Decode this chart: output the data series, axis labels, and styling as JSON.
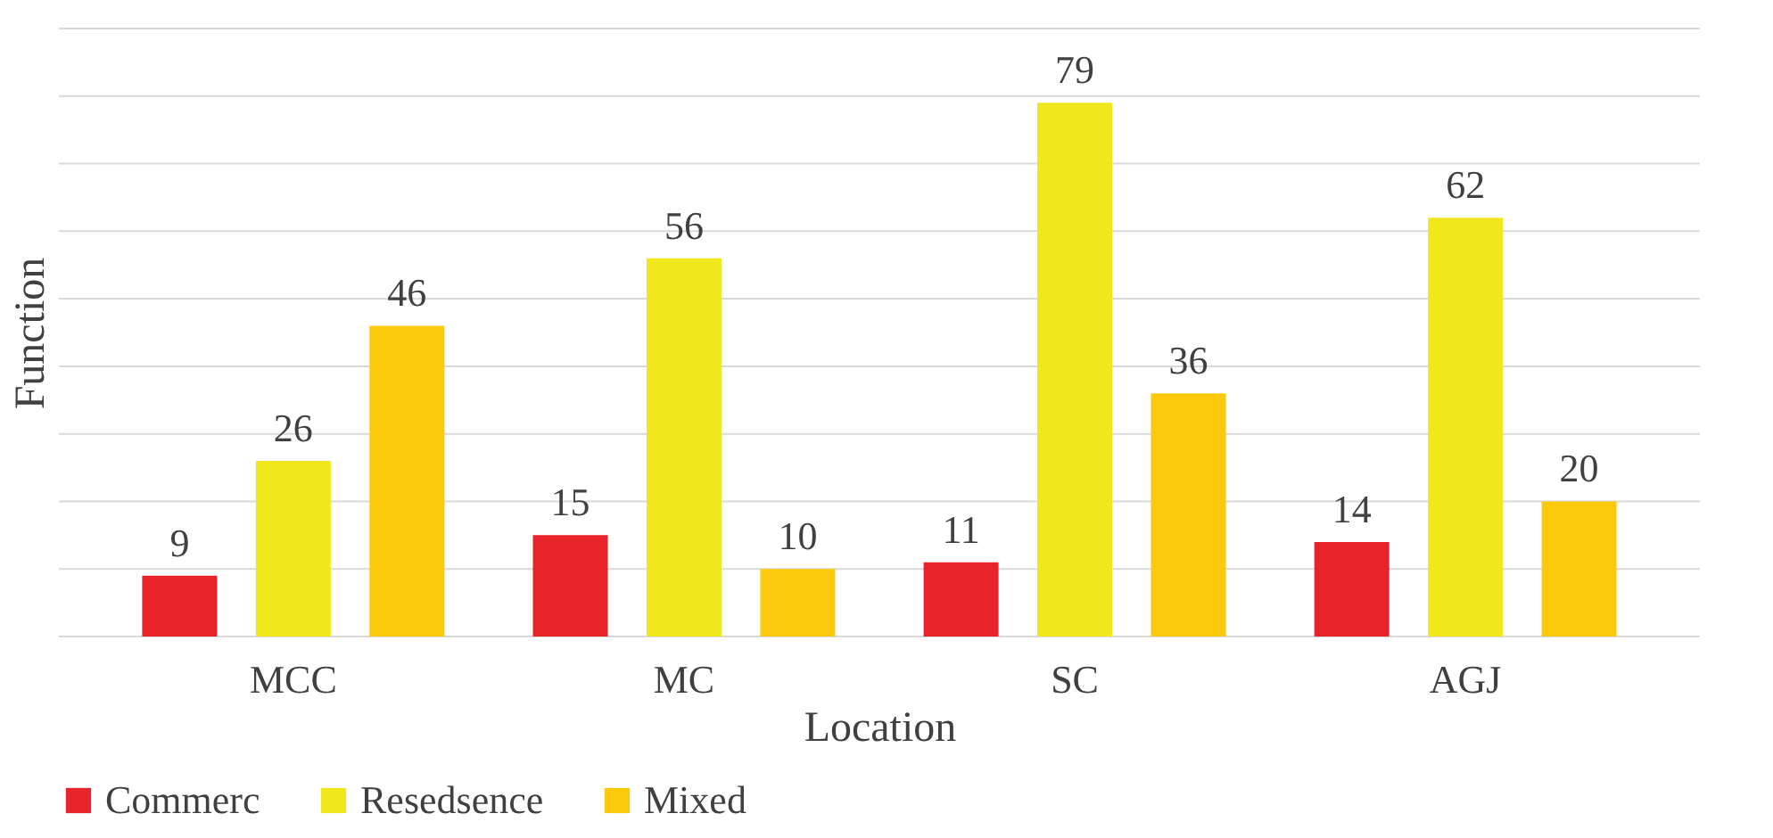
{
  "chart_data": {
    "type": "bar",
    "xlabel": "Location",
    "ylabel": "Function",
    "categories": [
      "MCC",
      "MC",
      "SC",
      "AGJ"
    ],
    "series": [
      {
        "name": "Commerc",
        "color": "#e8232a",
        "values": [
          9,
          15,
          11,
          14
        ]
      },
      {
        "name": "Resedsence",
        "color": "#f0e81c",
        "values": [
          26,
          56,
          79,
          62
        ]
      },
      {
        "name": "Mixed",
        "color": "#fdc90c",
        "values": [
          46,
          10,
          36,
          20
        ]
      }
    ],
    "ylim": [
      0,
      90
    ],
    "yticks": [
      {
        "value": 0,
        "label": null
      },
      {
        "value": 10,
        "label": null
      },
      {
        "value": 20,
        "label": null
      },
      {
        "value": 30,
        "label": null
      },
      {
        "value": 40,
        "label": null
      },
      {
        "value": 50,
        "label": null
      },
      {
        "value": 60,
        "label": null
      },
      {
        "value": 70,
        "label": null
      },
      {
        "value": 80,
        "label": null
      },
      {
        "value": 90,
        "label": null
      }
    ],
    "tick_labels": "x",
    "grid": "y",
    "legend": "bottom",
    "data_labels": true
  }
}
